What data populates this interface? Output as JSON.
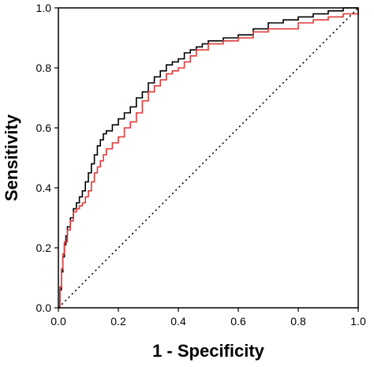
{
  "chart_data": {
    "type": "line",
    "title": "",
    "xlabel": "1 - Specificity",
    "ylabel": "Sensitivity",
    "xlim": [
      0.0,
      1.0
    ],
    "ylim": [
      0.0,
      1.0
    ],
    "xticks": [
      {
        "value": 0.0,
        "label": "0.0"
      },
      {
        "value": 0.2,
        "label": "0.2"
      },
      {
        "value": 0.4,
        "label": "0.4"
      },
      {
        "value": 0.6,
        "label": "0.6"
      },
      {
        "value": 0.8,
        "label": "0.8"
      },
      {
        "value": 1.0,
        "label": "1.0"
      }
    ],
    "yticks": [
      {
        "value": 0.0,
        "label": "0.0"
      },
      {
        "value": 0.2,
        "label": "0.2"
      },
      {
        "value": 0.4,
        "label": "0.4"
      },
      {
        "value": 0.6,
        "label": "0.6"
      },
      {
        "value": 0.8,
        "label": "0.8"
      },
      {
        "value": 1.0,
        "label": "1.0"
      }
    ],
    "grid": false,
    "legend": "none",
    "series": [
      {
        "color": "#000000",
        "style": "solid",
        "x": [
          0.0,
          0.005,
          0.01,
          0.015,
          0.02,
          0.025,
          0.03,
          0.04,
          0.05,
          0.06,
          0.07,
          0.08,
          0.09,
          0.1,
          0.11,
          0.12,
          0.13,
          0.14,
          0.15,
          0.16,
          0.18,
          0.2,
          0.22,
          0.24,
          0.26,
          0.28,
          0.3,
          0.32,
          0.34,
          0.36,
          0.38,
          0.4,
          0.42,
          0.44,
          0.46,
          0.48,
          0.5,
          0.55,
          0.6,
          0.65,
          0.7,
          0.75,
          0.8,
          0.85,
          0.9,
          0.95,
          1.0
        ],
        "y": [
          0.0,
          0.06,
          0.12,
          0.17,
          0.21,
          0.24,
          0.27,
          0.3,
          0.33,
          0.35,
          0.37,
          0.39,
          0.42,
          0.45,
          0.48,
          0.51,
          0.54,
          0.56,
          0.58,
          0.59,
          0.61,
          0.63,
          0.65,
          0.67,
          0.7,
          0.72,
          0.75,
          0.77,
          0.79,
          0.81,
          0.82,
          0.83,
          0.85,
          0.86,
          0.87,
          0.88,
          0.89,
          0.9,
          0.91,
          0.93,
          0.95,
          0.96,
          0.97,
          0.98,
          0.99,
          1.0,
          1.0
        ]
      },
      {
        "color": "#e03a3a",
        "style": "solid",
        "x": [
          0.0,
          0.005,
          0.01,
          0.015,
          0.02,
          0.03,
          0.04,
          0.05,
          0.06,
          0.07,
          0.08,
          0.09,
          0.1,
          0.11,
          0.12,
          0.13,
          0.14,
          0.15,
          0.16,
          0.18,
          0.2,
          0.22,
          0.24,
          0.26,
          0.28,
          0.3,
          0.32,
          0.34,
          0.36,
          0.38,
          0.4,
          0.42,
          0.44,
          0.46,
          0.5,
          0.55,
          0.6,
          0.65,
          0.7,
          0.75,
          0.8,
          0.85,
          0.9,
          0.95,
          1.0
        ],
        "y": [
          0.0,
          0.07,
          0.13,
          0.18,
          0.22,
          0.26,
          0.29,
          0.32,
          0.33,
          0.34,
          0.35,
          0.37,
          0.39,
          0.42,
          0.45,
          0.47,
          0.49,
          0.51,
          0.53,
          0.55,
          0.57,
          0.6,
          0.62,
          0.65,
          0.69,
          0.72,
          0.74,
          0.76,
          0.78,
          0.79,
          0.8,
          0.82,
          0.84,
          0.86,
          0.88,
          0.89,
          0.9,
          0.92,
          0.93,
          0.93,
          0.95,
          0.96,
          0.97,
          0.98,
          1.0
        ]
      },
      {
        "color": "#000000",
        "style": "dotted",
        "x": [
          0.0,
          1.0
        ],
        "y": [
          0.0,
          1.0
        ]
      }
    ]
  }
}
